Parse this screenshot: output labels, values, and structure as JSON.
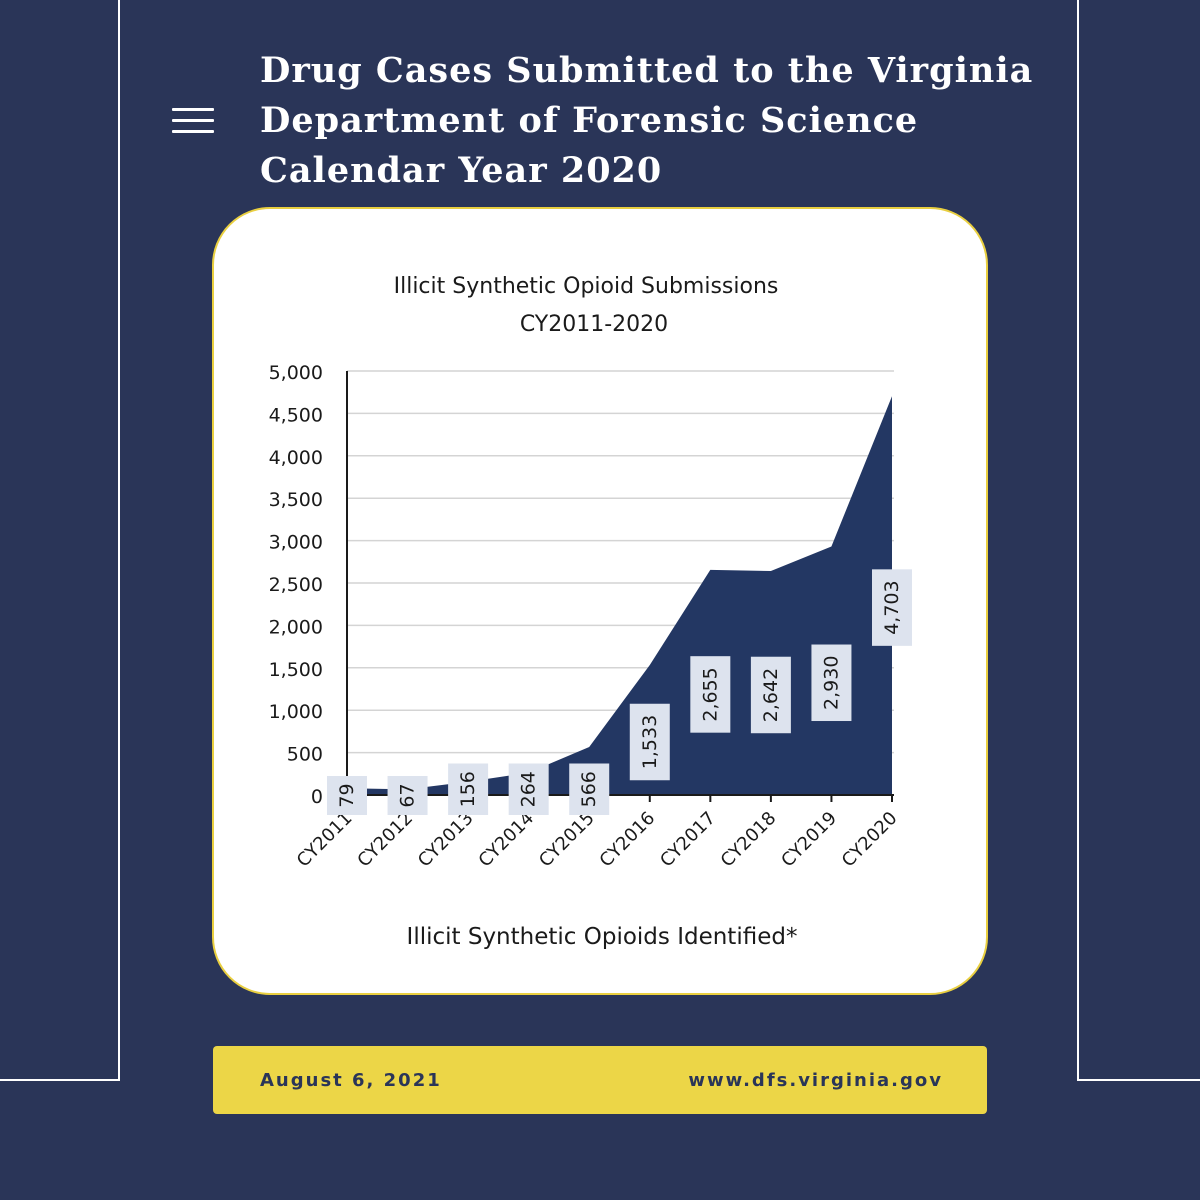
{
  "page": {
    "title_lines": [
      "Drug Cases Submitted to the Virginia",
      "Department of Forensic Science",
      "Calendar Year 2020"
    ]
  },
  "menu": {
    "icon": "hamburger-menu-icon"
  },
  "colors": {
    "background": "#2a3558",
    "area_fill": "#233763",
    "card_border": "#e9cf40",
    "footer": "#ecd647",
    "label_box": "#dde3ee"
  },
  "chart_data": {
    "type": "area",
    "title": "Illicit Synthetic Opioid Submissions",
    "subtitle": "CY2011-2020",
    "categories": [
      "CY2011",
      "CY2012",
      "CY2013",
      "CY2014",
      "CY2015",
      "CY2016",
      "CY2017",
      "CY2018",
      "CY2019",
      "CY2020"
    ],
    "series": [
      {
        "name": "Illicit Synthetic Opioids Identified*",
        "values": [
          79,
          67,
          156,
          264,
          566,
          1533,
          2655,
          2642,
          2930,
          4703
        ]
      }
    ],
    "data_labels": [
      "79",
      "67",
      "156",
      "264",
      "566",
      "1,533",
      "2,655",
      "2,642",
      "2,930",
      "4,703"
    ],
    "yticks": [
      "0",
      "500",
      "1,000",
      "1,500",
      "2,000",
      "2,500",
      "3,000",
      "3,500",
      "4,000",
      "4,500",
      "5,000"
    ],
    "ylim": [
      0,
      5000
    ],
    "grid": true,
    "legend_position": "bottom"
  },
  "footer": {
    "date": "August 6, 2021",
    "url": "www.dfs.virginia.gov"
  }
}
